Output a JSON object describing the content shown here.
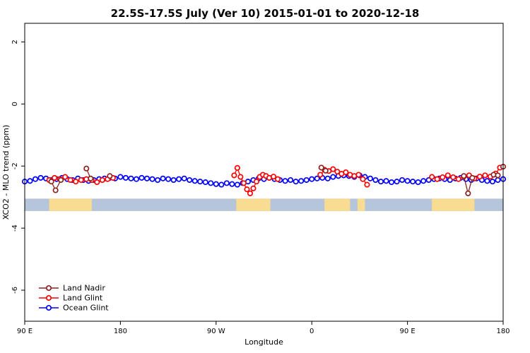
{
  "chart_data": {
    "type": "scatter",
    "title": "22.5S-17.5S July (Ver 10)   2015-01-01 to 2020-12-18",
    "xlabel": "Longitude",
    "ylabel": "XCO2 - MLO trend (ppm)",
    "xlim": [
      90,
      540
    ],
    "ylim": [
      -7,
      2.6
    ],
    "grid": false,
    "x_ticks": [
      {
        "value": 90,
        "label": "90 E"
      },
      {
        "value": 180,
        "label": "180"
      },
      {
        "value": 270,
        "label": "90 W"
      },
      {
        "value": 360,
        "label": "0"
      },
      {
        "value": 450,
        "label": "90 E"
      },
      {
        "value": 540,
        "label": "180"
      }
    ],
    "y_ticks": [
      {
        "value": 2,
        "label": "2"
      },
      {
        "value": 0,
        "label": "0"
      },
      {
        "value": -2,
        "label": "-2"
      },
      {
        "value": -4,
        "label": "-4"
      },
      {
        "value": -6,
        "label": "-6"
      }
    ],
    "legend_position": "bottom-left",
    "map_strip": {
      "y_top": -3.05,
      "y_bottom": -3.45,
      "ocean_color": "#b6c6da",
      "land_color": "#f8dc92",
      "land_segments": [
        [
          113,
          153
        ],
        [
          289,
          321
        ],
        [
          372,
          396
        ],
        [
          403,
          410
        ],
        [
          473,
          513
        ]
      ]
    },
    "series": [
      {
        "name": "Land Nadir",
        "color": "#8B2323",
        "segments": [
          [
            [
              115,
              -2.5
            ],
            [
              119,
              -2.78
            ],
            [
              124,
              -2.45
            ]
          ],
          [
            [
              148,
              -2.08
            ],
            [
              152,
              -2.4
            ]
          ],
          [
            [
              170,
              -2.32
            ]
          ],
          [
            [
              369,
              -2.05
            ],
            [
              373,
              -2.15
            ]
          ],
          [
            [
              503,
              -2.32
            ],
            [
              507,
              -2.88
            ],
            [
              511,
              -2.38
            ]
          ],
          [
            [
              531,
              -2.28
            ],
            [
              535,
              -2.3
            ]
          ],
          [
            [
              540,
              -2.02
            ]
          ]
        ]
      },
      {
        "name": "Land Glint",
        "color": "#FF0000",
        "segments": [
          [
            [
              113,
              -2.45
            ],
            [
              118,
              -2.38
            ],
            [
              123,
              -2.42
            ],
            [
              128,
              -2.35
            ],
            [
              133,
              -2.45
            ],
            [
              138,
              -2.5
            ],
            [
              143,
              -2.45
            ],
            [
              148,
              -2.42
            ],
            [
              153,
              -2.45
            ],
            [
              158,
              -2.52
            ],
            [
              163,
              -2.45
            ],
            [
              168,
              -2.42
            ],
            [
              173,
              -2.38
            ]
          ],
          [
            [
              287,
              -2.3
            ],
            [
              290,
              -2.06
            ],
            [
              293,
              -2.35
            ],
            [
              296,
              -2.55
            ],
            [
              299,
              -2.75
            ],
            [
              302,
              -2.88
            ],
            [
              305,
              -2.72
            ],
            [
              308,
              -2.5
            ],
            [
              311,
              -2.35
            ],
            [
              314,
              -2.28
            ],
            [
              317,
              -2.32
            ],
            [
              320,
              -2.38
            ],
            [
              324,
              -2.34
            ],
            [
              328,
              -2.42
            ]
          ],
          [
            [
              368,
              -2.28
            ],
            [
              372,
              -2.12
            ],
            [
              376,
              -2.16
            ],
            [
              380,
              -2.1
            ],
            [
              384,
              -2.18
            ],
            [
              388,
              -2.25
            ],
            [
              392,
              -2.2
            ],
            [
              396,
              -2.28
            ],
            [
              400,
              -2.32
            ],
            [
              404,
              -2.28
            ],
            [
              408,
              -2.42
            ],
            [
              412,
              -2.6
            ]
          ],
          [
            [
              473,
              -2.35
            ],
            [
              478,
              -2.42
            ],
            [
              483,
              -2.36
            ],
            [
              488,
              -2.3
            ],
            [
              493,
              -2.36
            ],
            [
              498,
              -2.42
            ],
            [
              503,
              -2.34
            ],
            [
              508,
              -2.3
            ],
            [
              513,
              -2.4
            ],
            [
              518,
              -2.34
            ],
            [
              523,
              -2.3
            ],
            [
              528,
              -2.34
            ],
            [
              533,
              -2.24
            ],
            [
              537,
              -2.05
            ]
          ]
        ]
      },
      {
        "name": "Ocean Glint",
        "color": "#0000FF",
        "segments": [
          [
            [
              90,
              -2.5
            ],
            [
              95,
              -2.48
            ],
            [
              100,
              -2.42
            ],
            [
              105,
              -2.38
            ],
            [
              110,
              -2.4
            ],
            [
              115,
              -2.45
            ],
            [
              120,
              -2.42
            ],
            [
              125,
              -2.38
            ],
            [
              130,
              -2.42
            ],
            [
              135,
              -2.45
            ],
            [
              140,
              -2.4
            ],
            [
              145,
              -2.45
            ],
            [
              150,
              -2.48
            ],
            [
              155,
              -2.45
            ],
            [
              160,
              -2.42
            ],
            [
              165,
              -2.4
            ],
            [
              170,
              -2.38
            ],
            [
              175,
              -2.4
            ],
            [
              180,
              -2.35
            ],
            [
              185,
              -2.38
            ],
            [
              190,
              -2.4
            ],
            [
              195,
              -2.42
            ],
            [
              200,
              -2.38
            ],
            [
              205,
              -2.4
            ],
            [
              210,
              -2.42
            ],
            [
              215,
              -2.45
            ],
            [
              220,
              -2.4
            ],
            [
              225,
              -2.42
            ],
            [
              230,
              -2.45
            ],
            [
              235,
              -2.42
            ],
            [
              240,
              -2.4
            ],
            [
              245,
              -2.45
            ],
            [
              250,
              -2.48
            ],
            [
              255,
              -2.5
            ],
            [
              260,
              -2.52
            ],
            [
              265,
              -2.55
            ],
            [
              270,
              -2.58
            ],
            [
              275,
              -2.6
            ],
            [
              280,
              -2.55
            ],
            [
              285,
              -2.58
            ],
            [
              290,
              -2.6
            ],
            [
              295,
              -2.55
            ],
            [
              300,
              -2.5
            ],
            [
              305,
              -2.45
            ],
            [
              310,
              -2.4
            ],
            [
              315,
              -2.42
            ],
            [
              320,
              -2.38
            ],
            [
              325,
              -2.42
            ],
            [
              330,
              -2.45
            ],
            [
              335,
              -2.48
            ],
            [
              340,
              -2.45
            ],
            [
              345,
              -2.5
            ],
            [
              350,
              -2.48
            ],
            [
              355,
              -2.45
            ],
            [
              360,
              -2.42
            ],
            [
              365,
              -2.4
            ],
            [
              370,
              -2.38
            ],
            [
              375,
              -2.4
            ],
            [
              380,
              -2.35
            ],
            [
              385,
              -2.32
            ],
            [
              390,
              -2.3
            ],
            [
              395,
              -2.32
            ],
            [
              400,
              -2.35
            ],
            [
              405,
              -2.3
            ],
            [
              410,
              -2.35
            ],
            [
              415,
              -2.4
            ],
            [
              420,
              -2.45
            ],
            [
              425,
              -2.5
            ],
            [
              430,
              -2.48
            ],
            [
              435,
              -2.52
            ],
            [
              440,
              -2.5
            ],
            [
              445,
              -2.45
            ],
            [
              450,
              -2.48
            ],
            [
              455,
              -2.5
            ],
            [
              460,
              -2.52
            ],
            [
              465,
              -2.48
            ],
            [
              470,
              -2.45
            ],
            [
              475,
              -2.42
            ],
            [
              480,
              -2.4
            ],
            [
              485,
              -2.42
            ],
            [
              490,
              -2.45
            ],
            [
              495,
              -2.4
            ],
            [
              500,
              -2.38
            ],
            [
              505,
              -2.42
            ],
            [
              510,
              -2.45
            ],
            [
              515,
              -2.4
            ],
            [
              520,
              -2.45
            ],
            [
              525,
              -2.48
            ],
            [
              530,
              -2.5
            ],
            [
              535,
              -2.45
            ],
            [
              540,
              -2.42
            ]
          ]
        ]
      }
    ]
  }
}
